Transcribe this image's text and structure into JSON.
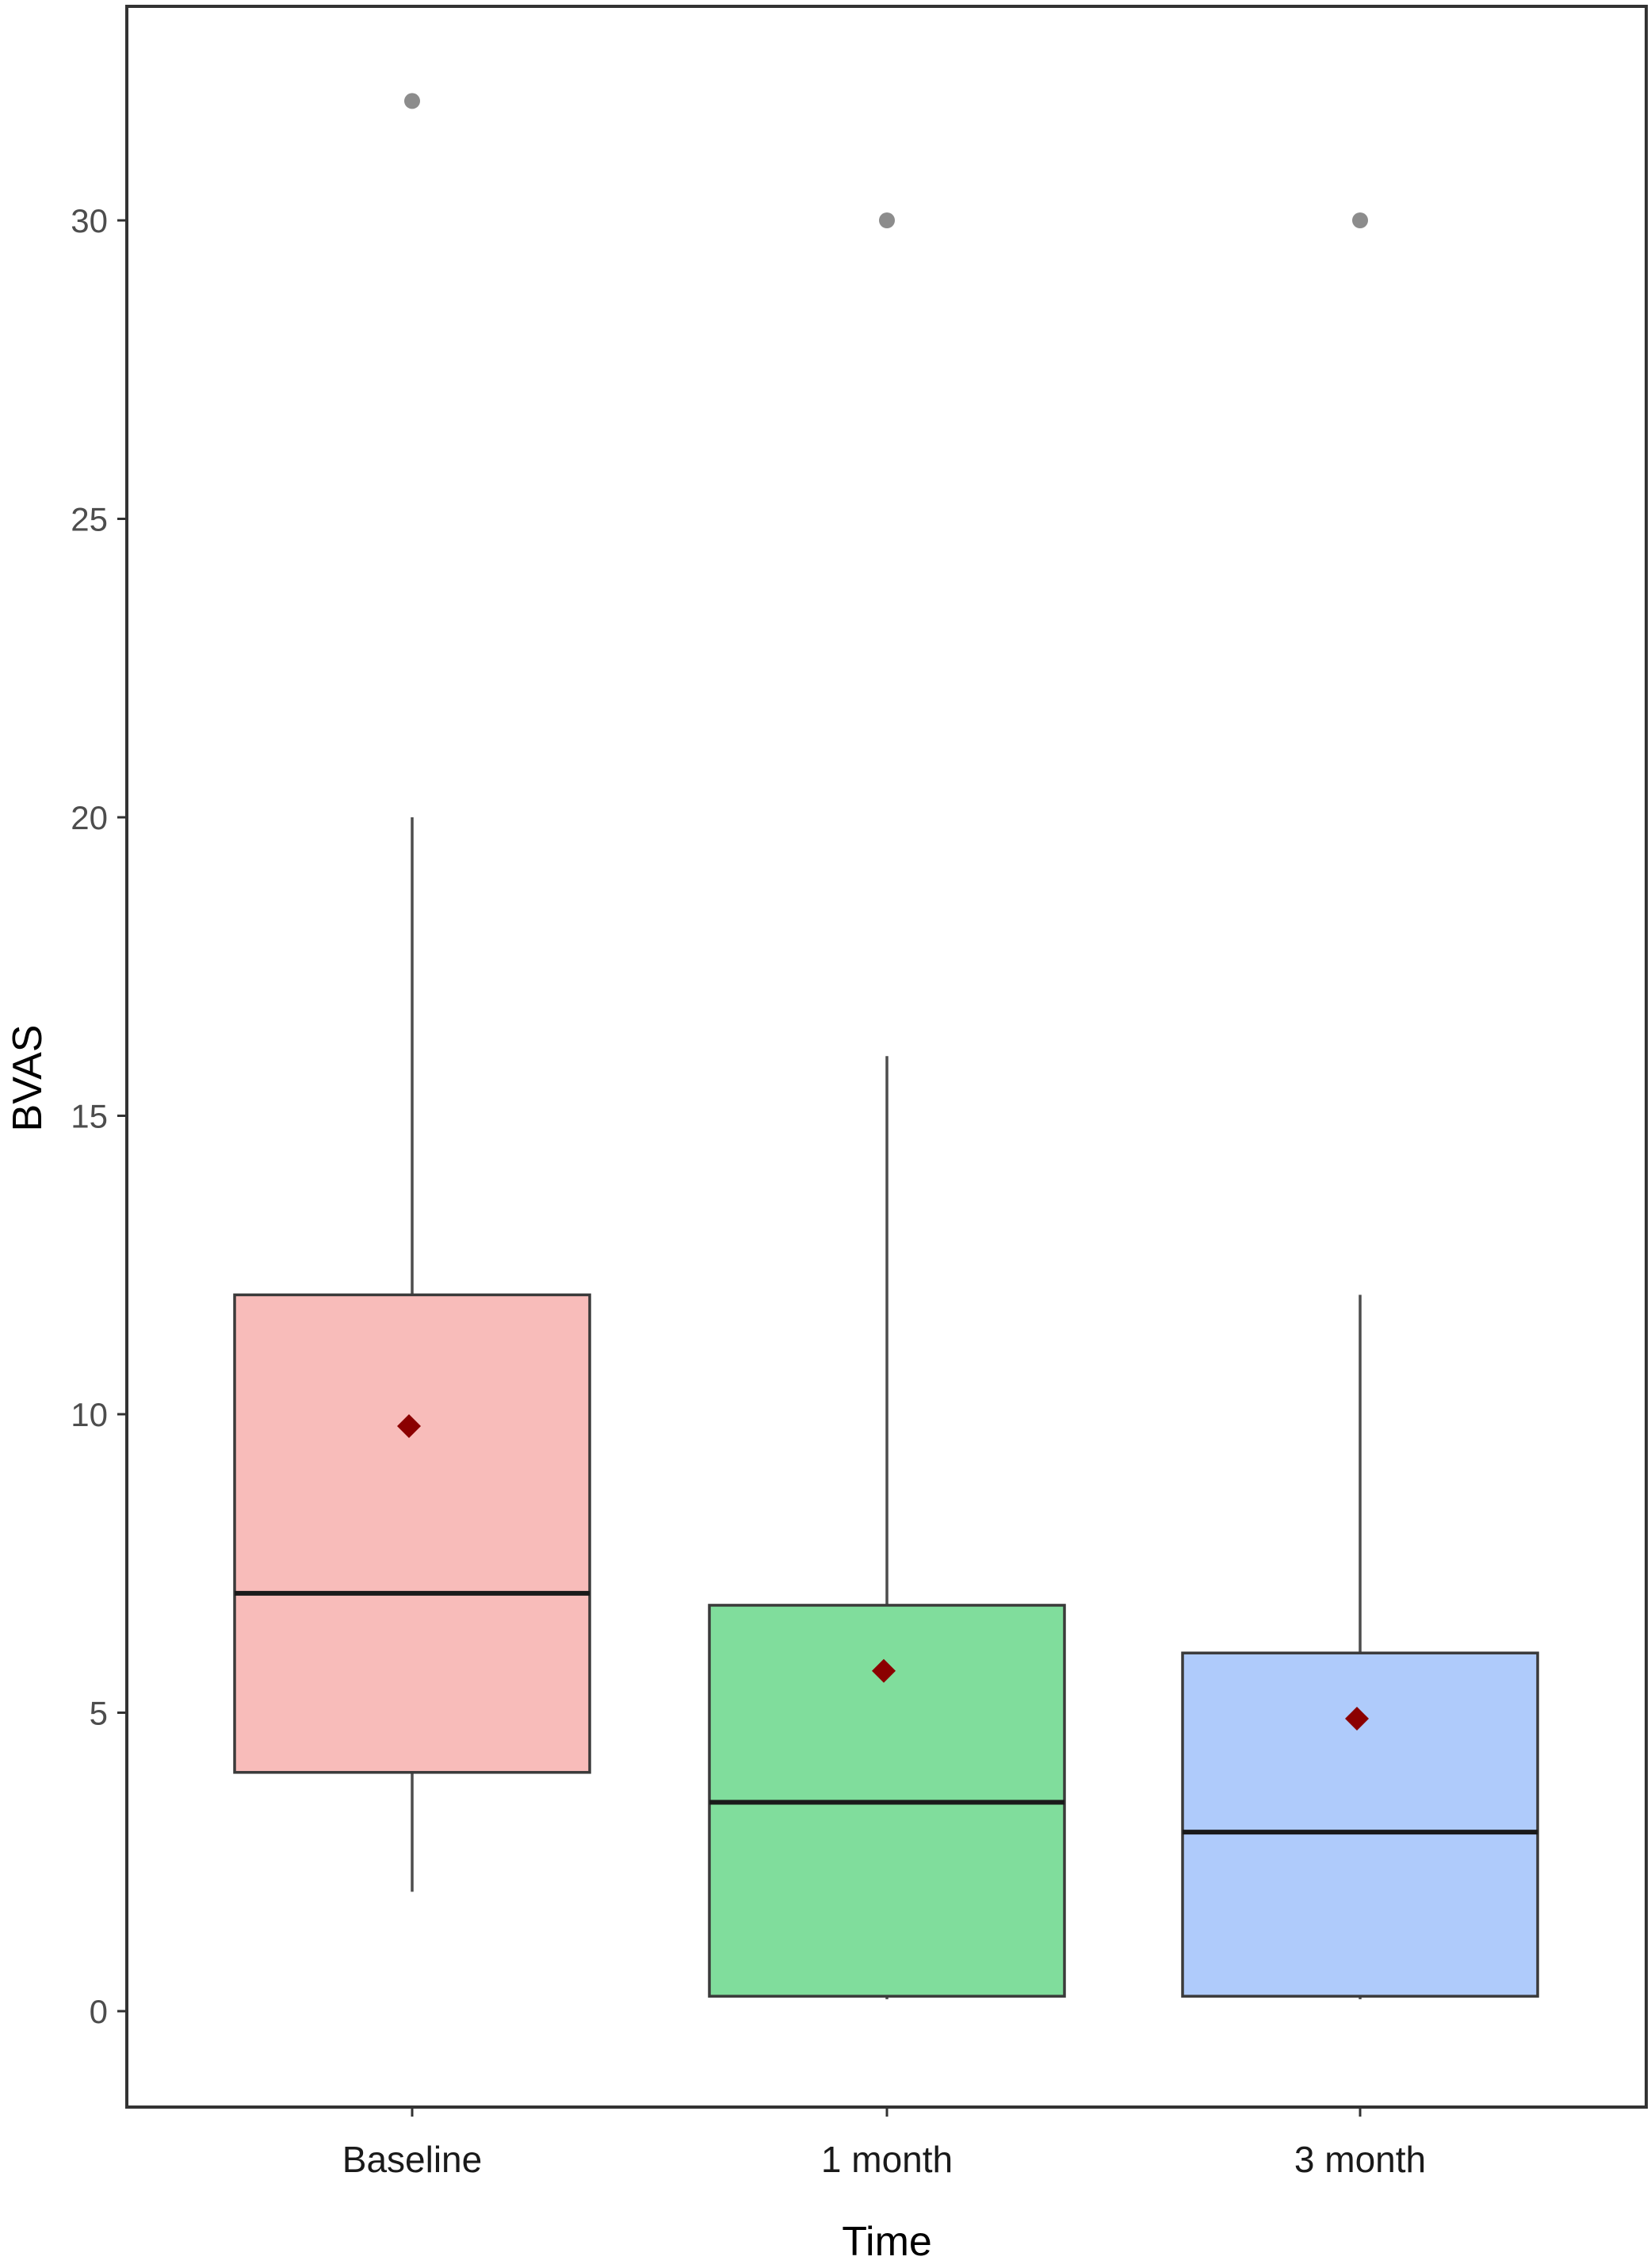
{
  "chart_data": {
    "type": "box",
    "xlabel": "Time",
    "ylabel": "BVAS",
    "ylim": [
      -1.5,
      33.8
    ],
    "yticks": [
      0,
      5,
      10,
      15,
      20,
      25,
      30
    ],
    "grid": false,
    "legend": "none",
    "categories": [
      "Baseline",
      "1 month",
      "3 month"
    ],
    "boxes": [
      {
        "category": "Baseline",
        "whisker_low": 2,
        "q1": 4,
        "median": 7,
        "q3": 12,
        "whisker_high": 20,
        "mean": 9.8,
        "outliers": [
          32
        ],
        "fill": "#F8BCBA"
      },
      {
        "category": "1 month",
        "whisker_low": 0.2,
        "q1": 0.25,
        "median": 3.5,
        "q3": 6.8,
        "whisker_high": 16,
        "mean": 5.7,
        "outliers": [
          30
        ],
        "fill": "#80DD9C"
      },
      {
        "category": "3 month",
        "whisker_low": 0.2,
        "q1": 0.25,
        "median": 3,
        "q3": 6,
        "whisker_high": 12,
        "mean": 4.9,
        "outliers": [
          30
        ],
        "fill": "#AFCBFB"
      }
    ],
    "mean_color": "#8B0000",
    "outlier_color": "#8c8c8c"
  }
}
